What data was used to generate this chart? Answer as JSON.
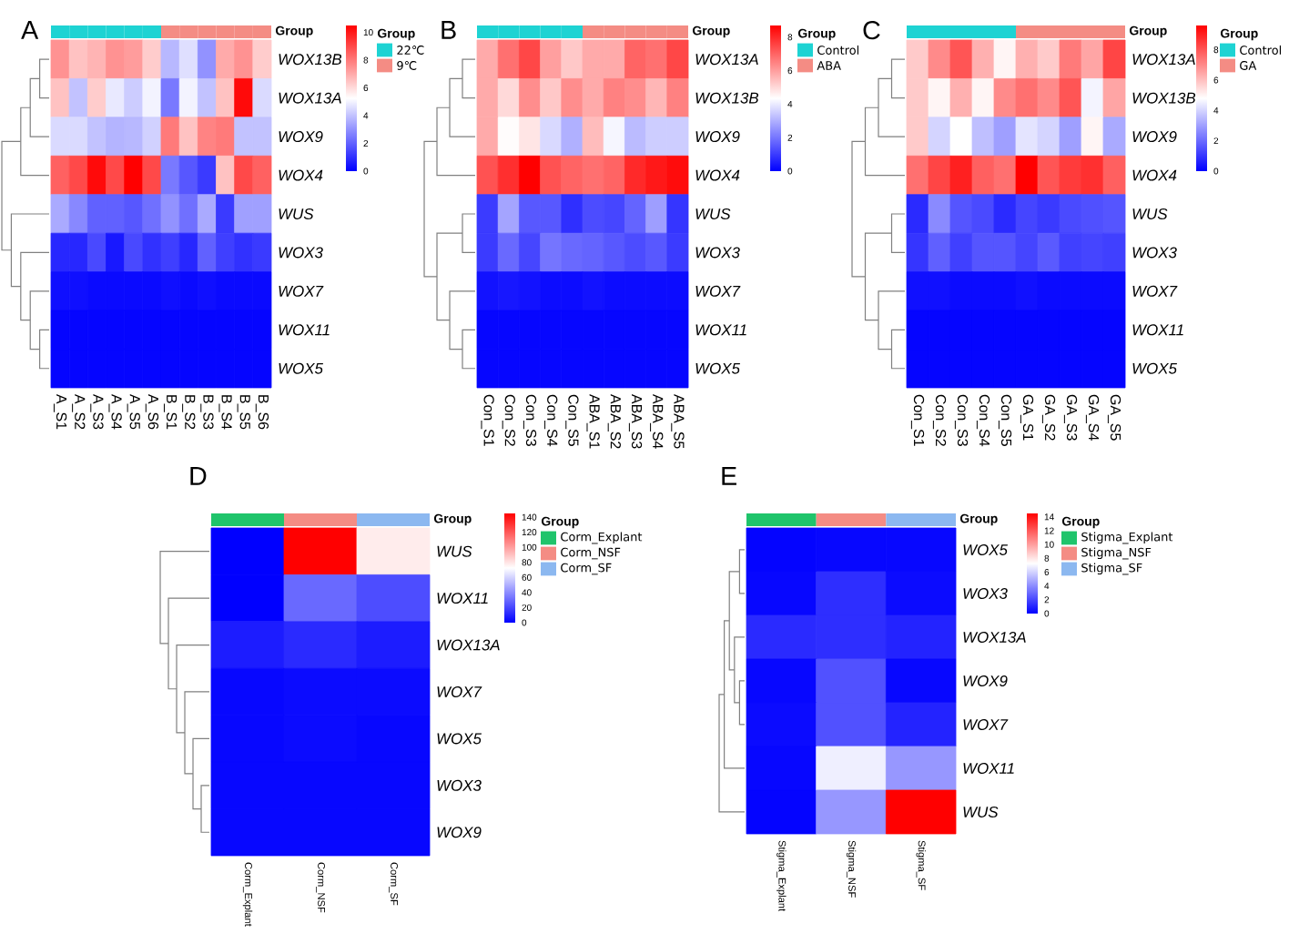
{
  "chart_data": [
    {
      "type": "heatmap",
      "title": "A",
      "categories": [
        "A_S1",
        "A_S2",
        "A_S3",
        "A_S4",
        "A_S5",
        "A_S6",
        "B_S1",
        "B_S2",
        "B_S3",
        "B_S4",
        "B_S5",
        "B_S6"
      ],
      "y_categories": [
        "WOX13B",
        "WOX13A",
        "WOX9",
        "WOX4",
        "WUS",
        "WOX3",
        "WOX7",
        "WOX11",
        "WOX5"
      ],
      "cells": [
        [
          7.5,
          6.5,
          6.8,
          7.5,
          7.3,
          6.3,
          3.8,
          4.6,
          3.0,
          7.0,
          7.5,
          6.3
        ],
        [
          6.5,
          4.0,
          6.3,
          4.8,
          4.2,
          5.0,
          2.5,
          5.0,
          4.0,
          6.5,
          10.3,
          4.5
        ],
        [
          4.5,
          4.5,
          4.0,
          3.7,
          3.8,
          4.3,
          8.0,
          6.5,
          7.8,
          8.0,
          4.0,
          4.0
        ],
        [
          8.5,
          9.0,
          10.3,
          9.0,
          10.5,
          9.0,
          2.5,
          1.8,
          1.2,
          6.5,
          9.0,
          8.5
        ],
        [
          3.5,
          2.8,
          2.0,
          2.0,
          1.8,
          2.3,
          3.0,
          2.3,
          3.5,
          1.2,
          3.3,
          3.3
        ],
        [
          0.8,
          0.8,
          1.5,
          0.5,
          1.5,
          1.0,
          1.3,
          0.8,
          2.0,
          1.3,
          1.0,
          1.2
        ],
        [
          0.3,
          0.3,
          0.2,
          0.2,
          0.2,
          0.2,
          0.3,
          0.2,
          0.3,
          0.2,
          0.2,
          0.2
        ],
        [
          0.1,
          0.1,
          0.1,
          0.1,
          0.1,
          0.1,
          0.1,
          0.1,
          0.1,
          0.1,
          0.1,
          0.1
        ],
        [
          0.1,
          0.1,
          0.1,
          0.1,
          0.1,
          0.1,
          0.1,
          0.1,
          0.1,
          0.1,
          0.1,
          0.1
        ]
      ],
      "clim": [
        0,
        10.5
      ],
      "cticks": [
        0,
        2,
        4,
        6,
        8,
        10
      ],
      "colors": [
        "#1ed3d3",
        "#1ed3d3",
        "#1ed3d3",
        "#1ed3d3",
        "#1ed3d3",
        "#1ed3d3",
        "#f48c84",
        "#f48c84",
        "#f48c84",
        "#f48c84",
        "#f48c84",
        "#f48c84"
      ],
      "annotations": [
        "Group",
        "22℃",
        "9℃"
      ],
      "legend_title": "Group"
    },
    {
      "type": "heatmap",
      "title": "B",
      "categories": [
        "Con_S1",
        "Con_S2",
        "Con_S3",
        "Con_S4",
        "Con_S5",
        "ABA_S1",
        "ABA_S2",
        "ABA_S3",
        "ABA_S4",
        "ABA_S5"
      ],
      "y_categories": [
        "WOX13A",
        "WOX13B",
        "WOX9",
        "WOX4",
        "WUS",
        "WOX3",
        "WOX7",
        "WOX11",
        "WOX5"
      ],
      "cells": [
        [
          5.8,
          6.8,
          7.5,
          6.0,
          5.3,
          5.8,
          5.8,
          7.0,
          6.8,
          7.5
        ],
        [
          5.8,
          5.0,
          6.3,
          5.3,
          6.3,
          5.8,
          6.5,
          6.3,
          5.6,
          6.5
        ],
        [
          5.8,
          4.4,
          4.8,
          3.7,
          3.0,
          5.5,
          4.2,
          3.2,
          3.5,
          3.5
        ],
        [
          7.3,
          7.9,
          8.7,
          7.3,
          7.0,
          6.8,
          7.0,
          8.0,
          8.3,
          8.5
        ],
        [
          1.0,
          2.8,
          1.5,
          1.5,
          0.8,
          1.3,
          1.2,
          1.7,
          2.7,
          0.9
        ],
        [
          1.0,
          1.8,
          1.2,
          2.0,
          1.8,
          1.7,
          1.5,
          1.3,
          1.5,
          1.0
        ],
        [
          0.3,
          0.4,
          0.3,
          0.2,
          0.2,
          0.3,
          0.2,
          0.2,
          0.2,
          0.2
        ],
        [
          0.1,
          0.1,
          0.1,
          0.1,
          0.1,
          0.1,
          0.1,
          0.1,
          0.1,
          0.1
        ],
        [
          0.1,
          0.1,
          0.1,
          0.1,
          0.1,
          0.1,
          0.1,
          0.1,
          0.1,
          0.1
        ]
      ],
      "clim": [
        0,
        8.7
      ],
      "cticks": [
        0,
        2,
        4,
        6,
        8
      ],
      "colors": [
        "#1ed3d3",
        "#1ed3d3",
        "#1ed3d3",
        "#1ed3d3",
        "#1ed3d3",
        "#f48c84",
        "#f48c84",
        "#f48c84",
        "#f48c84",
        "#f48c84"
      ],
      "annotations": [
        "Group",
        "Control",
        "ABA"
      ],
      "legend_title": "Group"
    },
    {
      "type": "heatmap",
      "title": "C",
      "categories": [
        "Con_S1",
        "Con_S2",
        "Con_S3",
        "Con_S4",
        "Con_S5",
        "GA_S1",
        "GA_S2",
        "GA_S3",
        "GA_S4",
        "GA_S5"
      ],
      "y_categories": [
        "WOX13A",
        "WOX13B",
        "WOX9",
        "WOX4",
        "WUS",
        "WOX3",
        "WOX7",
        "WOX11",
        "WOX5"
      ],
      "cells": [
        [
          5.8,
          7.0,
          8.0,
          6.3,
          5.0,
          6.3,
          5.8,
          7.3,
          6.5,
          8.3
        ],
        [
          5.8,
          5.0,
          6.3,
          5.0,
          7.0,
          7.5,
          7.0,
          8.0,
          4.6,
          6.5
        ],
        [
          5.8,
          4.0,
          4.8,
          3.6,
          3.0,
          4.3,
          4.0,
          3.0,
          5.0,
          3.2
        ],
        [
          7.5,
          8.3,
          9.0,
          7.8,
          7.5,
          9.6,
          8.0,
          8.5,
          8.7,
          7.8
        ],
        [
          0.8,
          2.6,
          1.6,
          1.4,
          0.8,
          1.3,
          1.1,
          1.4,
          1.5,
          1.6
        ],
        [
          1.0,
          1.8,
          1.2,
          1.6,
          1.6,
          1.3,
          1.7,
          1.2,
          1.3,
          1.2
        ],
        [
          0.3,
          0.3,
          0.2,
          0.2,
          0.2,
          0.3,
          0.2,
          0.2,
          0.2,
          0.2
        ],
        [
          0.1,
          0.1,
          0.1,
          0.1,
          0.1,
          0.1,
          0.1,
          0.1,
          0.1,
          0.1
        ],
        [
          0.1,
          0.1,
          0.1,
          0.1,
          0.1,
          0.1,
          0.1,
          0.1,
          0.1,
          0.1
        ]
      ],
      "clim": [
        0,
        9.6
      ],
      "cticks": [
        0,
        2,
        4,
        6,
        8
      ],
      "colors": [
        "#1ed3d3",
        "#1ed3d3",
        "#1ed3d3",
        "#1ed3d3",
        "#1ed3d3",
        "#f48c84",
        "#f48c84",
        "#f48c84",
        "#f48c84",
        "#f48c84"
      ],
      "annotations": [
        "Group",
        "Control",
        "GA"
      ],
      "legend_title": "Group"
    },
    {
      "type": "heatmap",
      "title": "D",
      "categories": [
        "Corm_Explant",
        "Corm_NSF",
        "Corm_SF"
      ],
      "y_categories": [
        "WUS",
        "WOX11",
        "WOX13A",
        "WOX7",
        "WOX5",
        "WOX3",
        "WOX9"
      ],
      "cells": [
        [
          0,
          145,
          78
        ],
        [
          0,
          30,
          22
        ],
        [
          8,
          12,
          8
        ],
        [
          2,
          3,
          3
        ],
        [
          2,
          3,
          2
        ],
        [
          2,
          2,
          2
        ],
        [
          2,
          2,
          2
        ]
      ],
      "clim": [
        0,
        145
      ],
      "cticks": [
        0,
        20,
        40,
        60,
        80,
        100,
        120,
        140
      ],
      "colors": [
        "#1fc46b",
        "#f48c84",
        "#8cb8f0"
      ],
      "annotations": [
        "Group",
        "Corm_Explant",
        "Corm_NSF",
        "Corm_SF"
      ],
      "legend_title": "Group"
    },
    {
      "type": "heatmap",
      "title": "E",
      "categories": [
        "Stigma_Explant",
        "Stigma_NSF",
        "Stigma_SF"
      ],
      "y_categories": [
        "WOX5",
        "WOX3",
        "WOX13A",
        "WOX9",
        "WOX7",
        "WOX11",
        "WUS"
      ],
      "cells": [
        [
          0.1,
          0.2,
          0.2
        ],
        [
          0.2,
          1.3,
          0.3
        ],
        [
          1.2,
          1.3,
          1.0
        ],
        [
          0.2,
          2.3,
          0.2
        ],
        [
          0.3,
          2.3,
          1.0
        ],
        [
          0.2,
          6.8,
          4.3
        ],
        [
          0.1,
          4.3,
          14.5
        ]
      ],
      "clim": [
        0,
        14.5
      ],
      "cticks": [
        0,
        2,
        4,
        6,
        8,
        10,
        12,
        14
      ],
      "colors": [
        "#1fc46b",
        "#f48c84",
        "#8cb8f0"
      ],
      "annotations": [
        "Group",
        "Stigma_Explant",
        "Stigma_NSF",
        "Stigma_SF"
      ],
      "legend_title": "Group"
    }
  ]
}
